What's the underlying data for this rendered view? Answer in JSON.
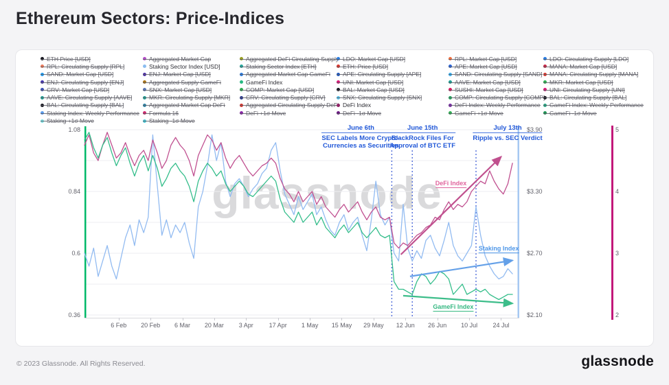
{
  "title": {
    "text": "Ethereum Sectors: Price-Indices"
  },
  "watermark": "glassnode",
  "footer": {
    "copyright": "© 2023 Glassnode. All Rights Reserved.",
    "brand": "glassnode"
  },
  "legend": {
    "columns": [
      [
        {
          "label": "ETH Price [USD]",
          "color": "#17171f",
          "active": false
        },
        {
          "label": "RPL: Circulating Supply [RPL]",
          "color": "#e8795a",
          "active": false
        },
        {
          "label": "SAND: Market Cap [USD]",
          "color": "#1e9bf0",
          "active": false
        },
        {
          "label": "ENJ: Circulating Supply [ENJ]",
          "color": "#4636ab",
          "active": false
        },
        {
          "label": "CRV: Market Cap [USD]",
          "color": "#3d51b5",
          "active": false
        },
        {
          "label": "AAVE: Circulating Supply [AAVE]",
          "color": "#1f9e93",
          "active": false
        },
        {
          "label": "BAL: Circulating Supply [BAL]",
          "color": "#17171f",
          "active": false
        },
        {
          "label": "Staking Index: Weekly Performance",
          "color": "#5c9ded",
          "active": false
        },
        {
          "label": "Staking +1σ Move",
          "color": "#7adee0",
          "active": false
        }
      ],
      [
        {
          "label": "Aggregated Market Cap",
          "color": "#b44fc8",
          "active": false
        },
        {
          "label": "Staking Sector Index [USD]",
          "color": "#8bbdf0",
          "active": true
        },
        {
          "label": "ENJ: Market Cap [USD]",
          "color": "#4d2ea8",
          "active": false
        },
        {
          "label": "Aggregated Supply GameFi",
          "color": "#a8741a",
          "active": false
        },
        {
          "label": "SNX: Market Cap [USD]",
          "color": "#5a78b8",
          "active": false
        },
        {
          "label": "MKR: Circulating Supply [MKR]",
          "color": "#1f9e93",
          "active": false
        },
        {
          "label": "Aggregated Market Cap DeFi",
          "color": "#2f86a8",
          "active": false
        },
        {
          "label": "Formula 16",
          "color": "#cc2a6e",
          "active": false
        },
        {
          "label": "Staking -1σ Move",
          "color": "#45c8d8",
          "active": false
        }
      ],
      [
        {
          "label": "Aggregated DeFi Circulating Supply",
          "color": "#9aa022",
          "active": false
        },
        {
          "label": "Staking Sector Index [ETH]",
          "color": "#27a69a",
          "active": false
        },
        {
          "label": "Aggregated Market Cap GameFi",
          "color": "#2a7de1",
          "active": false
        },
        {
          "label": "GameFi Index",
          "color": "#27b882",
          "active": true
        },
        {
          "label": "COMP: Market Cap [USD]",
          "color": "#2fae52",
          "active": false
        },
        {
          "label": "CRV: Circulating Supply [CRV]",
          "color": "#2a3890",
          "active": false
        },
        {
          "label": "Aggregated Circulating Supply DeFi",
          "color": "#d8362e",
          "active": false
        },
        {
          "label": "DeFi +1σ Move",
          "color": "#8a27a8",
          "active": false
        }
      ],
      [
        {
          "label": "LDO: Market Cap [USD]",
          "color": "#2a7de1",
          "active": false
        },
        {
          "label": "ETH: Price [USD]",
          "color": "#d8362e",
          "active": false
        },
        {
          "label": "APE: Circulating Supply [APE]",
          "color": "#1c56c0",
          "active": false
        },
        {
          "label": "UNI: Market Cap [USD]",
          "color": "#d81b78",
          "active": false
        },
        {
          "label": "BAL: Market Cap [USD]",
          "color": "#17171f",
          "active": false
        },
        {
          "label": "SNX: Circulating Supply [SNX]",
          "color": "#58c0e8",
          "active": false
        },
        {
          "label": "DeFi Index",
          "color": "#8e2064",
          "active": true
        },
        {
          "label": "DeFi -1σ Move",
          "color": "#6a1880",
          "active": false
        }
      ],
      [
        {
          "label": "RPL: Market Cap [USD]",
          "color": "#f07040",
          "active": false
        },
        {
          "label": "APE: Market Cap [USD]",
          "color": "#2a63d4",
          "active": false
        },
        {
          "label": "SAND: Circulating Supply [SAND]",
          "color": "#38b0f0",
          "active": false
        },
        {
          "label": "AAVE: Market Cap [USD]",
          "color": "#1f9e93",
          "active": false
        },
        {
          "label": "SUSHI: Market Cap [USD]",
          "color": "#d81b60",
          "active": false
        },
        {
          "label": "COMP: Circulating Supply [COMP]",
          "color": "#24a860",
          "active": false
        },
        {
          "label": "DeFi Index: Weekly Performance",
          "color": "#7a28a8",
          "active": false
        },
        {
          "label": "GameFi +1σ Move",
          "color": "#2fae52",
          "active": false
        }
      ],
      [
        {
          "label": "LDO: Circulating Supply [LDO]",
          "color": "#2a7de1",
          "active": false
        },
        {
          "label": "MANA: Market Cap [USD]",
          "color": "#c42846",
          "active": false
        },
        {
          "label": "MANA: Circulating Supply [MANA]",
          "color": "#d8362e",
          "active": false
        },
        {
          "label": "MKR: Market Cap [USD]",
          "color": "#2fae52",
          "active": false
        },
        {
          "label": "UNI: Circulating Supply [UNI]",
          "color": "#d81b78",
          "active": false
        },
        {
          "label": "BAL: Circulating Supply [BAL]",
          "color": "#17171f",
          "active": false
        },
        {
          "label": "GameFi Index: Weekly Performance",
          "color": "#27a884",
          "active": false
        },
        {
          "label": "GameFi -1σ Move",
          "color": "#1f9455",
          "active": false
        }
      ]
    ]
  },
  "chart_data": {
    "type": "line",
    "x_start_date": "2023-01-22",
    "x_end_date": "2023-08-01",
    "step_days": 2,
    "left_axis": {
      "tick_labels": [
        "1.08",
        "0.84",
        "0.6",
        "0.36"
      ],
      "tick_values": [
        1.08,
        0.84,
        0.6,
        0.36
      ],
      "gridline_values": [
        1.08,
        0.96,
        0.84,
        0.72,
        0.6,
        0.48,
        0.36
      ],
      "range": [
        0.36,
        1.08
      ]
    },
    "right_axis_usd": {
      "tick_labels": [
        "$3.90",
        "$3.30",
        "$2.70",
        "$2.10"
      ],
      "at_values": [
        1.08,
        0.84,
        0.6,
        0.36
      ]
    },
    "right_axis_secondary": {
      "tick_labels": [
        "5",
        "4",
        "3",
        "2"
      ],
      "at_values": [
        1.08,
        0.84,
        0.6,
        0.36
      ]
    },
    "x_ticks": [
      "6 Feb",
      "20 Feb",
      "6 Mar",
      "20 Mar",
      "3 Apr",
      "17 Apr",
      "1 May",
      "15 May",
      "29 May",
      "12 Jun",
      "26 Jun",
      "10 Jul",
      "24 Jul"
    ],
    "x_tick_dates": [
      "2023-02-06",
      "2023-02-20",
      "2023-03-06",
      "2023-03-20",
      "2023-04-03",
      "2023-04-17",
      "2023-05-01",
      "2023-05-15",
      "2023-05-29",
      "2023-06-12",
      "2023-06-26",
      "2023-07-10",
      "2023-07-24"
    ],
    "series": [
      {
        "name": "Staking Sector Index [USD]",
        "color": "#92bbf1",
        "values": [
          0.6,
          0.55,
          0.62,
          0.51,
          0.57,
          0.63,
          0.55,
          0.5,
          0.58,
          0.66,
          0.71,
          0.63,
          0.73,
          0.68,
          0.74,
          1.06,
          0.86,
          0.67,
          0.73,
          0.66,
          0.71,
          0.68,
          0.72,
          0.64,
          0.58,
          0.78,
          0.84,
          0.94,
          1.06,
          0.96,
          1.03,
          0.88,
          0.82,
          0.87,
          0.89,
          0.86,
          0.82,
          0.85,
          0.87,
          0.91,
          0.93,
          1.0,
          1.03,
          0.92,
          0.83,
          0.79,
          0.75,
          0.82,
          0.77,
          0.8,
          0.83,
          0.75,
          0.78,
          0.73,
          0.69,
          0.67,
          0.72,
          0.75,
          0.69,
          0.72,
          0.74,
          0.67,
          0.61,
          0.73,
          0.88,
          0.75,
          0.71,
          0.74,
          0.6,
          0.57,
          0.79,
          0.62,
          0.57,
          0.61,
          0.58,
          0.65,
          0.67,
          0.62,
          0.59,
          0.65,
          0.72,
          0.63,
          0.59,
          0.57,
          0.6,
          0.63,
          0.78,
          0.67,
          0.59,
          0.55,
          0.52,
          0.5,
          0.51,
          0.54,
          0.52
        ]
      },
      {
        "name": "DeFi Index",
        "color": "#c05090",
        "values": [
          1.02,
          1.06,
          0.99,
          0.96,
          1.02,
          1.07,
          1.02,
          0.97,
          0.99,
          1.03,
          0.98,
          0.94,
          0.98,
          1.0,
          0.96,
          1.04,
          0.99,
          0.93,
          0.96,
          1.02,
          1.05,
          1.02,
          1.0,
          0.96,
          0.9,
          0.98,
          1.02,
          1.06,
          1.04,
          1.0,
          1.03,
          0.97,
          0.93,
          0.96,
          0.98,
          0.95,
          0.92,
          0.9,
          0.92,
          0.94,
          0.95,
          0.97,
          0.95,
          0.89,
          0.85,
          0.83,
          0.8,
          0.84,
          0.8,
          0.82,
          0.84,
          0.79,
          0.82,
          0.78,
          0.76,
          0.74,
          0.77,
          0.79,
          0.76,
          0.78,
          0.8,
          0.76,
          0.73,
          0.76,
          0.78,
          0.74,
          0.73,
          0.74,
          0.64,
          0.62,
          0.64,
          0.63,
          0.65,
          0.67,
          0.68,
          0.7,
          0.71,
          0.74,
          0.73,
          0.77,
          0.8,
          0.77,
          0.79,
          0.78,
          0.8,
          0.84,
          0.86,
          0.88,
          0.87,
          0.92,
          0.88,
          0.85,
          0.83,
          0.87,
          0.95
        ]
      },
      {
        "name": "GameFi Index",
        "color": "#33bd8a",
        "values": [
          1.04,
          1.07,
          1.01,
          0.97,
          1.02,
          1.05,
          0.99,
          0.94,
          0.98,
          1.01,
          0.95,
          0.9,
          0.95,
          0.98,
          0.92,
          0.98,
          0.93,
          0.86,
          0.89,
          0.93,
          0.95,
          0.92,
          0.9,
          0.86,
          0.8,
          0.88,
          0.92,
          0.95,
          0.93,
          0.9,
          0.92,
          0.87,
          0.84,
          0.86,
          0.88,
          0.86,
          0.83,
          0.82,
          0.84,
          0.86,
          0.88,
          0.9,
          0.88,
          0.81,
          0.76,
          0.74,
          0.72,
          0.76,
          0.72,
          0.74,
          0.76,
          0.71,
          0.74,
          0.7,
          0.68,
          0.66,
          0.69,
          0.71,
          0.68,
          0.7,
          0.72,
          0.68,
          0.66,
          0.68,
          0.7,
          0.67,
          0.66,
          0.67,
          0.49,
          0.46,
          0.46,
          0.45,
          0.44,
          0.49,
          0.52,
          0.51,
          0.48,
          0.5,
          0.53,
          0.52,
          0.5,
          0.44,
          0.46,
          0.48,
          0.44,
          0.45,
          0.46,
          0.45,
          0.46,
          0.44,
          0.43,
          0.42,
          0.43,
          0.44,
          0.44
        ]
      }
    ],
    "events": [
      {
        "date": "2023-06-06",
        "title": "June 6th",
        "lines": [
          "SEC Labels More Crypto-",
          "Currencies as Securities"
        ]
      },
      {
        "date": "2023-06-15",
        "title": "June 15th",
        "lines": [
          "BlackRock Files For",
          "Approval of BTC ETF"
        ]
      },
      {
        "date": "2023-07-13",
        "title": "July 13th",
        "lines": [
          "Ripple vs. SEC Verdict"
        ]
      }
    ],
    "line_labels": [
      {
        "text": "DeFi Index",
        "color": "#e0649c",
        "date": "2023-07-02",
        "value": 0.869
      },
      {
        "text": "Staking Index",
        "color": "#4f97e8",
        "date": "2023-07-23",
        "value": 0.616
      },
      {
        "text": "GameFi Index",
        "color": "#36b882",
        "date": "2023-07-03",
        "value": 0.389
      }
    ],
    "trend_arrows": [
      {
        "name": "defi-trend-arrow",
        "color": "#c0508e",
        "from_date": "2023-06-10",
        "from_value": 0.595,
        "to_date": "2023-07-24",
        "to_value": 0.975
      },
      {
        "name": "staking-trend-arrow",
        "color": "#64a0e8",
        "from_date": "2023-06-14",
        "from_value": 0.51,
        "to_date": "2023-07-29",
        "to_value": 0.572
      },
      {
        "name": "gamefi-trend-arrow",
        "color": "#3dbd8a",
        "from_date": "2023-06-11",
        "from_value": 0.435,
        "to_date": "2023-07-29",
        "to_value": 0.405
      }
    ],
    "edge_lines": [
      {
        "position": "plot-left",
        "color": "#00b868"
      },
      {
        "position": "plot-right",
        "color": "#a6c8f2"
      },
      {
        "position": "outer-right",
        "color": "#c2187a"
      }
    ],
    "event_line_color": "#3f5ed6",
    "gridline_color": "#ededf1"
  }
}
